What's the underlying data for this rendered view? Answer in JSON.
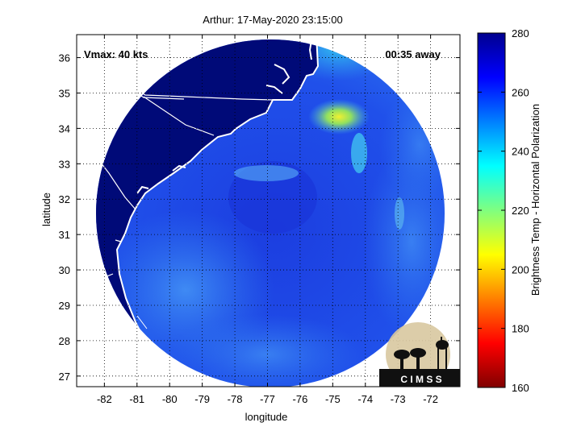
{
  "title": "Arthur: 17-May-2020 23:15:00",
  "vmax_label": "Vmax: 40 kts",
  "time_label": "00:35 away",
  "axes": {
    "xlabel": "longitude",
    "ylabel": "latitude",
    "x_ticks": [
      -82,
      -81,
      -80,
      -79,
      -78,
      -77,
      -76,
      -75,
      -74,
      -73,
      -72
    ],
    "y_ticks": [
      27,
      28,
      29,
      30,
      31,
      32,
      33,
      34,
      35,
      36
    ],
    "grid": "dotted"
  },
  "colorbar": {
    "label": "Brightness Temp - Horizontal Polarization",
    "ticks": [
      160,
      180,
      200,
      220,
      240,
      260,
      280
    ],
    "range": [
      160,
      280
    ],
    "colormap": "jet"
  },
  "logo": {
    "text": "C I M S S"
  },
  "colors": {
    "land": "#000a78",
    "ocean_base": "#1e46e6",
    "coast": "#ffffff"
  }
}
